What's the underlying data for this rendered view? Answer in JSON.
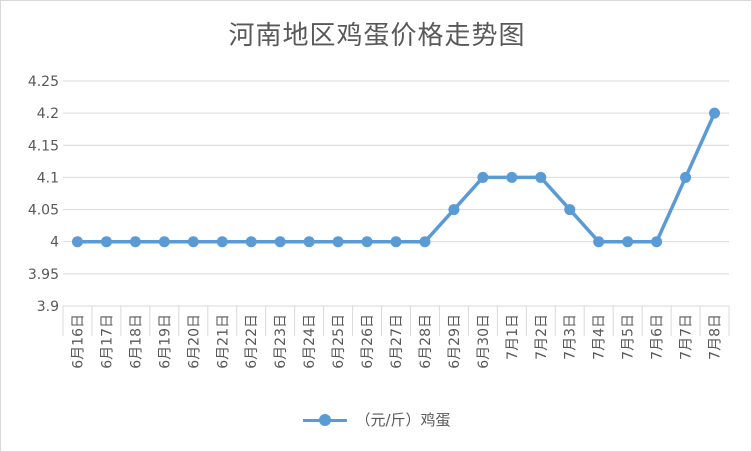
{
  "chart_data": {
    "type": "line",
    "title": "河南地区鸡蛋价格走势图",
    "categories": [
      "6月16日",
      "6月17日",
      "6月18日",
      "6月19日",
      "6月20日",
      "6月21日",
      "6月22日",
      "6月23日",
      "6月24日",
      "6月25日",
      "6月26日",
      "6月27日",
      "6月28日",
      "6月29日",
      "6月30日",
      "7月1日",
      "7月2日",
      "7月3日",
      "7月4日",
      "7月5日",
      "7月6日",
      "7月7日",
      "7月8日"
    ],
    "series": [
      {
        "name": "（元/斤）鸡蛋",
        "values": [
          4,
          4,
          4,
          4,
          4,
          4,
          4,
          4,
          4,
          4,
          4,
          4,
          4,
          4.05,
          4.1,
          4.1,
          4.1,
          4.05,
          4,
          4,
          4,
          4.1,
          4.2
        ],
        "color": "#5b9bd5"
      }
    ],
    "ylim": [
      3.9,
      4.25
    ],
    "yticks": [
      "3.9",
      "3.95",
      "4",
      "4.05",
      "4.1",
      "4.15",
      "4.2",
      "4.25"
    ],
    "grid": true,
    "legend_position": "bottom"
  }
}
